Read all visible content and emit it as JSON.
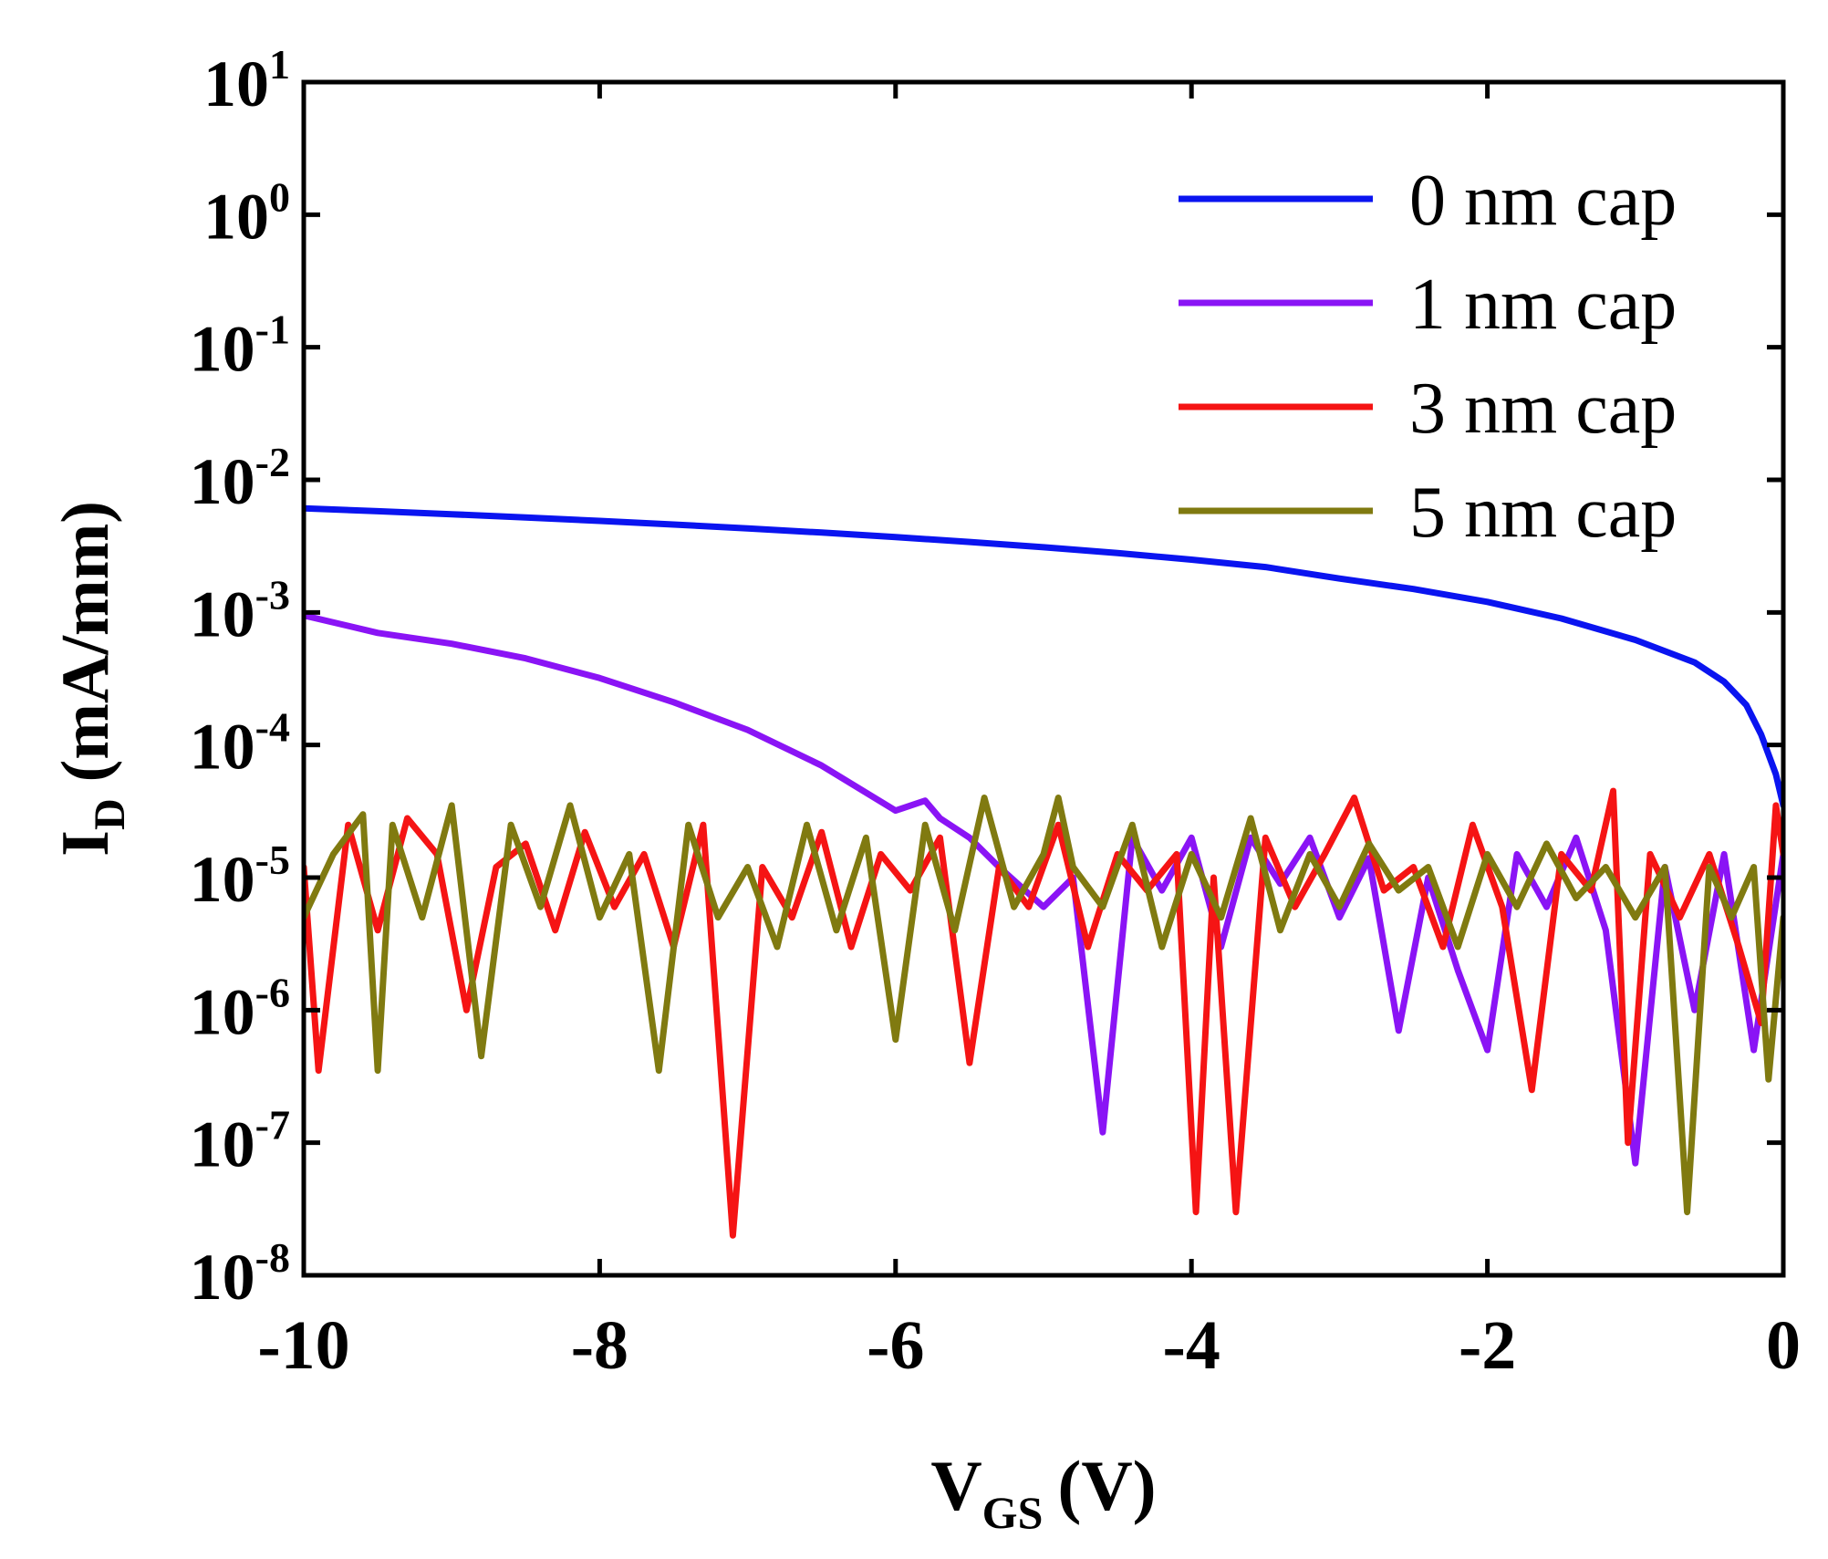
{
  "chart_data": {
    "type": "line",
    "title": "",
    "xlabel": {
      "main": "V",
      "sub": "GS",
      "unit": "(V)"
    },
    "ylabel": {
      "main": "I",
      "sub": "D",
      "unit": "(mA/mm)"
    },
    "xlim": [
      -10,
      0
    ],
    "ylim_log10": [
      -8,
      1
    ],
    "y_scale": "log",
    "x_ticks": [
      -10,
      -8,
      -6,
      -4,
      -2,
      0
    ],
    "x_tick_labels": [
      "-10",
      "-8",
      "-6",
      "-4",
      "-2",
      "0"
    ],
    "y_ticks": [
      {
        "base": "10",
        "exp": "1"
      },
      {
        "base": "10",
        "exp": "0"
      },
      {
        "base": "10",
        "exp": "-1"
      },
      {
        "base": "10",
        "exp": "-2"
      },
      {
        "base": "10",
        "exp": "-3"
      },
      {
        "base": "10",
        "exp": "-4"
      },
      {
        "base": "10",
        "exp": "-5"
      },
      {
        "base": "10",
        "exp": "-6"
      },
      {
        "base": "10",
        "exp": "-7"
      },
      {
        "base": "10",
        "exp": "-8"
      }
    ],
    "legend_position": "top-right",
    "series": [
      {
        "name": "0 nm cap",
        "color": "#0a14f0",
        "x": [
          -10,
          -9.5,
          -9,
          -8.5,
          -8,
          -7.5,
          -7,
          -6.5,
          -6,
          -5.5,
          -5,
          -4.5,
          -4,
          -3.5,
          -3,
          -2.5,
          -2,
          -1.5,
          -1,
          -0.6,
          -0.4,
          -0.25,
          -0.15,
          -0.05,
          0
        ],
        "y": [
          0.0061,
          0.0058,
          0.0055,
          0.0052,
          0.0049,
          0.0046,
          0.0043,
          0.004,
          0.0037,
          0.0034,
          0.0031,
          0.0028,
          0.0025,
          0.0022,
          0.0018,
          0.0015,
          0.0012,
          0.0009,
          0.00062,
          0.00042,
          0.0003,
          0.0002,
          0.00012,
          6e-05,
          3.5e-05
        ]
      },
      {
        "name": "1 nm cap",
        "color": "#8a14f5",
        "x": [
          -10,
          -9.5,
          -9,
          -8.5,
          -8,
          -7.5,
          -7,
          -6.5,
          -6,
          -5.8,
          -5.7,
          -5.5,
          -5.3,
          -5,
          -4.8,
          -4.6,
          -4.4,
          -4.2,
          -4,
          -3.8,
          -3.6,
          -3.4,
          -3.2,
          -3,
          -2.8,
          -2.6,
          -2.4,
          -2.2,
          -2,
          -1.8,
          -1.6,
          -1.4,
          -1.2,
          -1,
          -0.8,
          -0.6,
          -0.4,
          -0.2,
          0
        ],
        "y": [
          0.00095,
          0.0007,
          0.00058,
          0.00045,
          0.00032,
          0.00021,
          0.00013,
          7e-05,
          3.2e-05,
          3.8e-05,
          2.8e-05,
          2e-05,
          1.2e-05,
          6e-06,
          1e-05,
          1.2e-07,
          2e-05,
          8e-06,
          2e-05,
          3e-06,
          2e-05,
          9e-06,
          2e-05,
          5e-06,
          1.4e-05,
          7e-07,
          1e-05,
          2e-06,
          5e-07,
          1.5e-05,
          6e-06,
          2e-05,
          4e-06,
          7e-08,
          1.2e-05,
          1e-06,
          1.5e-05,
          5e-07,
          1.5e-05
        ]
      },
      {
        "name": "3 nm cap",
        "color": "#f51414",
        "x": [
          -10,
          -9.9,
          -9.7,
          -9.5,
          -9.3,
          -9.1,
          -8.9,
          -8.7,
          -8.5,
          -8.3,
          -8.1,
          -7.9,
          -7.7,
          -7.5,
          -7.3,
          -7.1,
          -6.9,
          -6.7,
          -6.5,
          -6.3,
          -6.1,
          -5.9,
          -5.7,
          -5.5,
          -5.3,
          -5.1,
          -4.9,
          -4.7,
          -4.5,
          -4.3,
          -4.1,
          -3.97,
          -3.85,
          -3.7,
          -3.5,
          -3.3,
          -3.1,
          -2.9,
          -2.7,
          -2.5,
          -2.3,
          -2.1,
          -1.9,
          -1.7,
          -1.5,
          -1.3,
          -1.15,
          -1.05,
          -0.9,
          -0.7,
          -0.5,
          -0.3,
          -0.15,
          -0.05,
          0
        ],
        "y": [
          1.2e-05,
          3.5e-07,
          2.5e-05,
          4e-06,
          2.8e-05,
          1.5e-05,
          1e-06,
          1.2e-05,
          1.8e-05,
          4e-06,
          2.2e-05,
          6e-06,
          1.5e-05,
          3e-06,
          2.5e-05,
          2e-08,
          1.2e-05,
          5e-06,
          2.2e-05,
          3e-06,
          1.5e-05,
          8e-06,
          2e-05,
          4e-07,
          1.2e-05,
          6e-06,
          2.5e-05,
          3e-06,
          1.5e-05,
          8e-06,
          1.5e-05,
          3e-08,
          1e-05,
          3e-08,
          2e-05,
          6e-06,
          1.5e-05,
          4e-05,
          8e-06,
          1.2e-05,
          3e-06,
          2.5e-05,
          6e-06,
          2.5e-07,
          1.5e-05,
          8e-06,
          4.5e-05,
          1e-07,
          1.5e-05,
          5e-06,
          1.5e-05,
          3e-06,
          8e-07,
          3.5e-05,
          1.5e-05
        ]
      },
      {
        "name": "5 nm cap",
        "color": "#807a10",
        "x": [
          -10,
          -9.8,
          -9.6,
          -9.5,
          -9.4,
          -9.2,
          -9.0,
          -8.8,
          -8.6,
          -8.4,
          -8.2,
          -8.0,
          -7.8,
          -7.6,
          -7.4,
          -7.2,
          -7.0,
          -6.8,
          -6.6,
          -6.4,
          -6.2,
          -6.0,
          -5.8,
          -5.6,
          -5.4,
          -5.2,
          -5.0,
          -4.9,
          -4.8,
          -4.6,
          -4.4,
          -4.2,
          -4.0,
          -3.8,
          -3.6,
          -3.4,
          -3.2,
          -3.0,
          -2.8,
          -2.6,
          -2.4,
          -2.2,
          -2.0,
          -1.8,
          -1.6,
          -1.4,
          -1.2,
          -1.0,
          -0.8,
          -0.65,
          -0.5,
          -0.35,
          -0.2,
          -0.1,
          0
        ],
        "y": [
          5e-06,
          1.5e-05,
          3e-05,
          3.5e-07,
          2.5e-05,
          5e-06,
          3.5e-05,
          4.5e-07,
          2.5e-05,
          6e-06,
          3.5e-05,
          5e-06,
          1.5e-05,
          3.5e-07,
          2.5e-05,
          5e-06,
          1.2e-05,
          3e-06,
          2.5e-05,
          4e-06,
          2e-05,
          6e-07,
          2.5e-05,
          4e-06,
          4e-05,
          6e-06,
          1.5e-05,
          4e-05,
          1.2e-05,
          6e-06,
          2.5e-05,
          3e-06,
          1.5e-05,
          5e-06,
          2.8e-05,
          4e-06,
          1.5e-05,
          6e-06,
          1.8e-05,
          8e-06,
          1.2e-05,
          3e-06,
          1.5e-05,
          6e-06,
          1.8e-05,
          7e-06,
          1.2e-05,
          5e-06,
          1.2e-05,
          3e-08,
          1.2e-05,
          5e-06,
          1.2e-05,
          3e-07,
          5e-06
        ]
      }
    ]
  }
}
